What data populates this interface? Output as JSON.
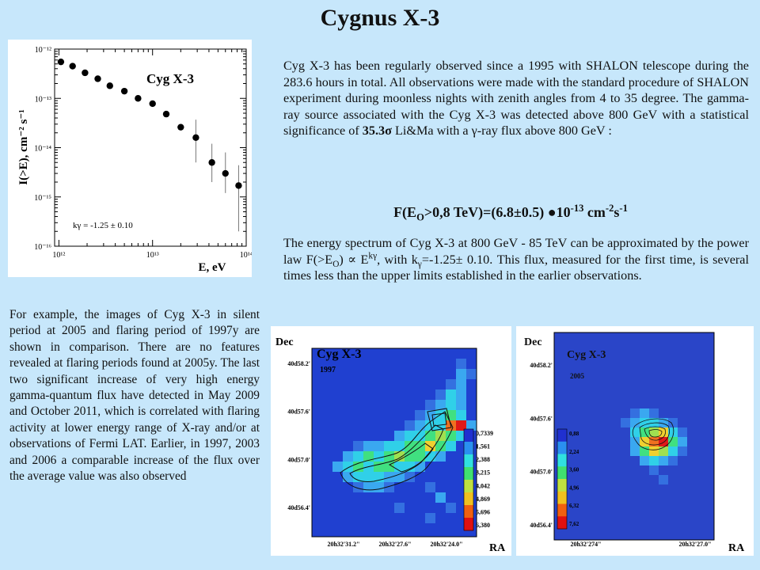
{
  "title": "Cygnus X-3",
  "paragraph1": {
    "before": "Cyg X-3 has been regularly observed since a 1995 with SHALON telescope during the 283.6 hours in total. All observations were made with the standard procedure of SHALON experiment during moonless nights with zenith angles from 4 to 35 degree. The gamma-ray source associated with the Cyg X-3 was detected above 800 GeV with a statistical significance of ",
    "significance": "35.3σ",
    "after": " Li&Ma with a γ-ray flux above 800 GeV :"
  },
  "formula": {
    "lhs_start": "F(E",
    "lhs_sub": "O",
    "lhs_rest": ">0,8 TeV)=(6.8±0.5) ●10",
    "exp1": "-13",
    "unit": " cm",
    "exp2": "-2",
    "unit2": "s",
    "exp3": "-1"
  },
  "paragraph2": {
    "p1": "The energy spectrum of Cyg X-3 at 800 GeV - 85 TeV can be approximated by the power law F(>E",
    "sub1": "O",
    "p2": ") ∝ E",
    "sup1": "kγ",
    "p3": ", with k",
    "sub2": "γ",
    "p4": "=-1.25± 0.10. This flux, measured for the first time, is several times less than the upper limits established in the earlier observations."
  },
  "paragraph3": "For example, the images of Cyg X-3 in silent period at 2005 and flaring period of 1997y are shown in comparison. There are no features revealed at flaring periods found at 2005y. The last two significant increase of very high energy gamma-quantum flux have detected in May 2009 and October 2011, which is correlated with flaring activity at lower energy range of X-ray and/or at observations of Fermi LAT. Earlier, in 1997, 2003 and 2006 a comparable increase of the flux over the average value was also observed",
  "chart_data": {
    "type": "scatter",
    "title": "Cyg X-3",
    "xlabel": "E, eV",
    "ylabel": "I(>E), cm⁻² s⁻¹",
    "xscale": "log",
    "yscale": "log",
    "xlim": [
      900000000000.0,
      100000000000000.0
    ],
    "ylim": [
      1e-16,
      1e-12
    ],
    "x_ticks": [
      {
        "value": 1000000000000.0,
        "label": "10¹²"
      },
      {
        "value": 10000000000000.0,
        "label": "10¹³"
      },
      {
        "value": 100000000000000.0,
        "label": "10¹⁴"
      }
    ],
    "y_ticks": [
      {
        "value": 1e-12,
        "label": "10⁻¹²"
      },
      {
        "value": 1e-13,
        "label": "10⁻¹³"
      },
      {
        "value": 1e-14,
        "label": "10⁻¹⁴"
      },
      {
        "value": 1e-15,
        "label": "10⁻¹⁵"
      },
      {
        "value": 1e-16,
        "label": "10⁻¹⁶"
      }
    ],
    "annotation": "kγ = -1.25 ± 0.10",
    "points": [
      {
        "x": 1050000000000.0,
        "y": 5.5e-13,
        "err": [
          0,
          0
        ]
      },
      {
        "x": 1400000000000.0,
        "y": 4.5e-13,
        "err": [
          0,
          0
        ]
      },
      {
        "x": 1900000000000.0,
        "y": 3.3e-13,
        "err": [
          0,
          0
        ]
      },
      {
        "x": 2600000000000.0,
        "y": 2.5e-13,
        "err": [
          0,
          0
        ]
      },
      {
        "x": 3500000000000.0,
        "y": 1.8e-13,
        "err": [
          0,
          0
        ]
      },
      {
        "x": 5000000000000.0,
        "y": 1.4e-13,
        "err": [
          0,
          0
        ]
      },
      {
        "x": 7000000000000.0,
        "y": 1e-13,
        "err": [
          0,
          0
        ]
      },
      {
        "x": 10000000000000.0,
        "y": 7.8e-14,
        "err": [
          0,
          0
        ]
      },
      {
        "x": 14000000000000.0,
        "y": 4.8e-14,
        "err": [
          0,
          0
        ]
      },
      {
        "x": 20000000000000.0,
        "y": 2.6e-14,
        "err": [
          0,
          0
        ]
      },
      {
        "x": 29000000000000.0,
        "y": 1.6e-14,
        "err": [
          2.1e-14,
          1.1e-14
        ]
      },
      {
        "x": 43000000000000.0,
        "y": 5e-15,
        "err": [
          7e-15,
          3e-15
        ]
      },
      {
        "x": 60000000000000.0,
        "y": 3e-15,
        "err": [
          5e-15,
          1.8e-15
        ]
      },
      {
        "x": 83000000000000.0,
        "y": 1.7e-15,
        "err": [
          2.7e-15,
          1.5e-15
        ]
      }
    ]
  },
  "map_1997": {
    "y_axis_title": "Dec",
    "x_axis_title": "RA",
    "source": "Cyg X-3",
    "year": "1997",
    "y_ticks": [
      "40d58.2'",
      "40d57.6'",
      "40d57.0'",
      "40d56.4'"
    ],
    "x_ticks": [
      "20h32'31.2\"",
      "20h32'27.6\"",
      "20h32'24.0\""
    ],
    "scale_labels": [
      "0,7339",
      "1,561",
      "2,388",
      "3,215",
      "4,042",
      "4,869",
      "5,696",
      "6,380"
    ]
  },
  "map_2005": {
    "y_axis_title": "Dec",
    "x_axis_title": "RA",
    "source": "Cyg X-3",
    "year": "2005",
    "y_ticks": [
      "40d58.2'",
      "40d57.6'",
      "40d57.0'",
      "40d56.4'"
    ],
    "x_ticks": [
      "20h32'274\"",
      "20h32'27.0\""
    ],
    "scale_labels": [
      "0,88",
      "2,24",
      "3,60",
      "4,96",
      "6,32",
      "7,62"
    ]
  },
  "colors": {
    "background": "#c7e7fb",
    "map_blue": "#2a45c8",
    "scale": [
      "#2030d0",
      "#2a90f0",
      "#30e0e0",
      "#40e070",
      "#c0e040",
      "#f0c020",
      "#f06010",
      "#e01010"
    ]
  }
}
